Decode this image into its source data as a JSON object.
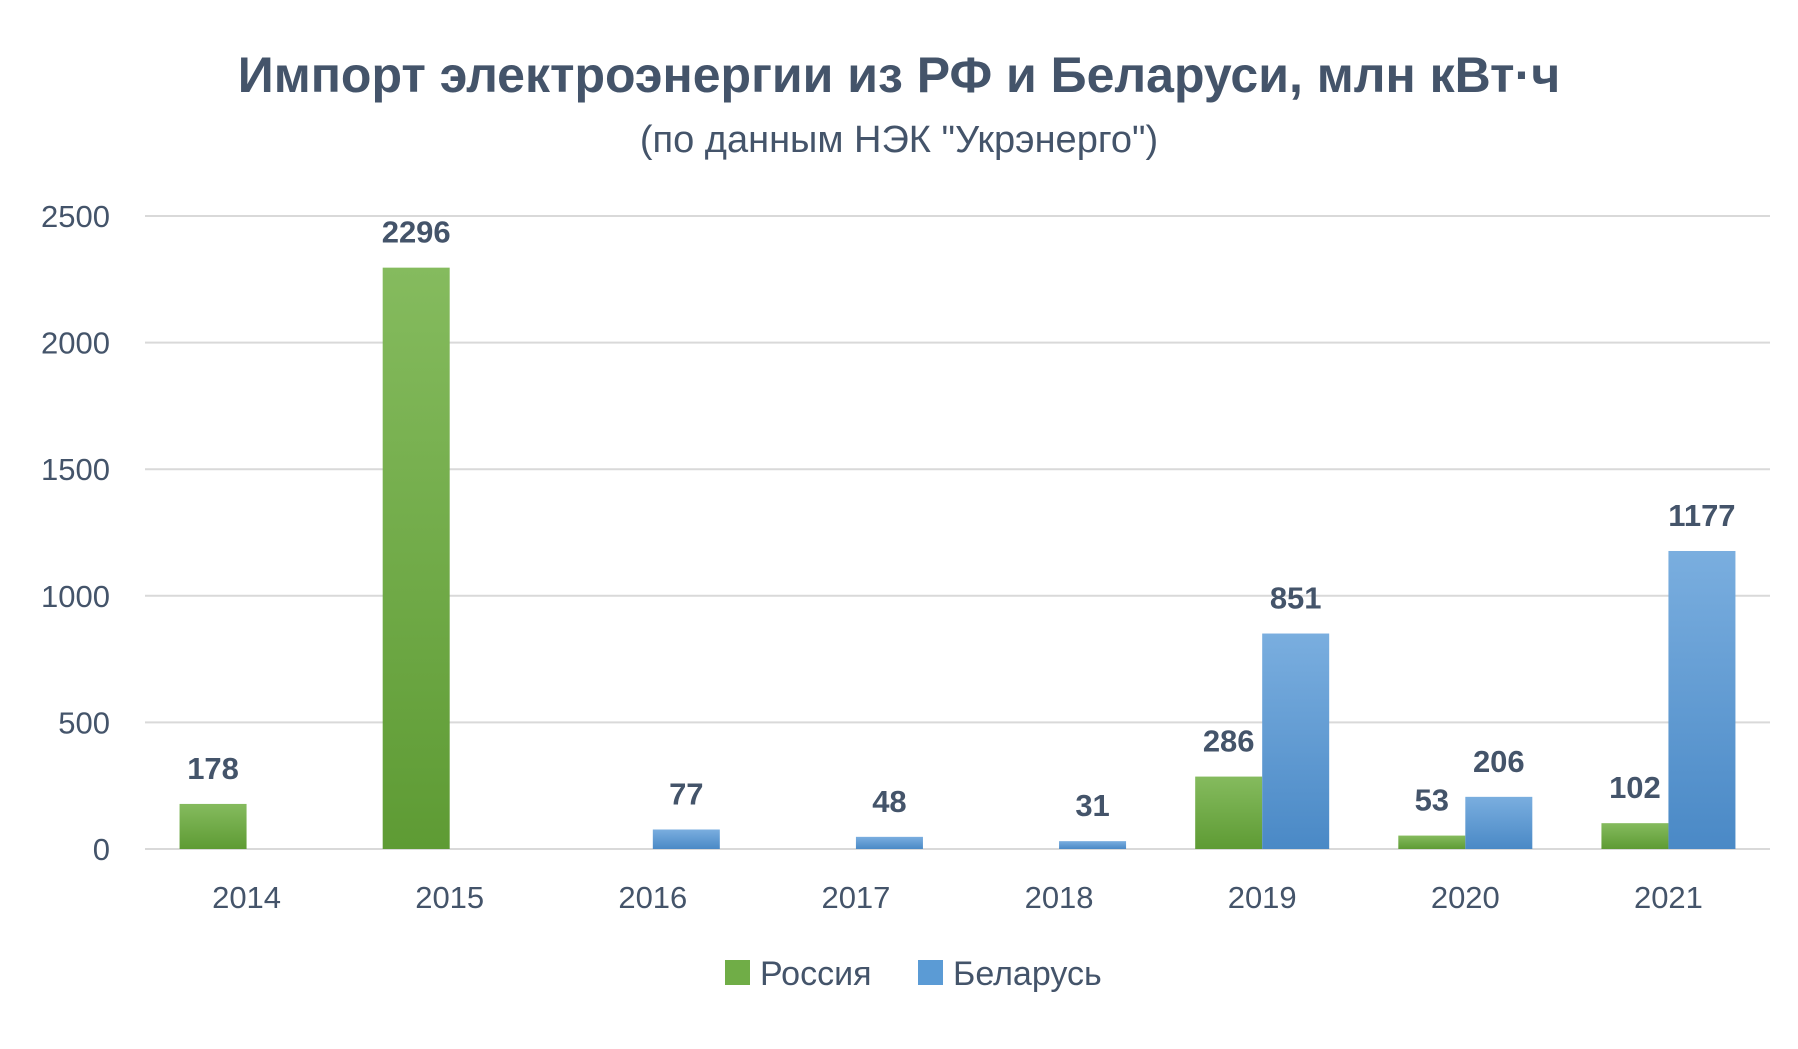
{
  "chart_data": {
    "type": "bar",
    "title": "Импорт электроэнергии из РФ и Беларуси, млн кВт·ч",
    "subtitle": "(по данным НЭК \"Укрэнерго\")",
    "xlabel": "",
    "ylabel": "",
    "categories": [
      "2014",
      "2015",
      "2016",
      "2017",
      "2018",
      "2019",
      "2020",
      "2021"
    ],
    "series": [
      {
        "name": "Россия",
        "color": "#70AD47",
        "color_dark": "#5E9B34",
        "color_light": "#85BB5E",
        "values": [
          178,
          2296,
          null,
          null,
          null,
          286,
          53,
          102
        ]
      },
      {
        "name": "Беларусь",
        "color": "#5B9BD5",
        "color_dark": "#4A89C6",
        "color_light": "#7AAEDF",
        "values": [
          null,
          null,
          77,
          48,
          31,
          851,
          206,
          1177
        ]
      }
    ],
    "ylim": [
      0,
      2500
    ],
    "yticks": [
      0,
      500,
      1000,
      1500,
      2000,
      2500
    ],
    "grid": true,
    "legend_position": "bottom",
    "data_labels": true
  }
}
